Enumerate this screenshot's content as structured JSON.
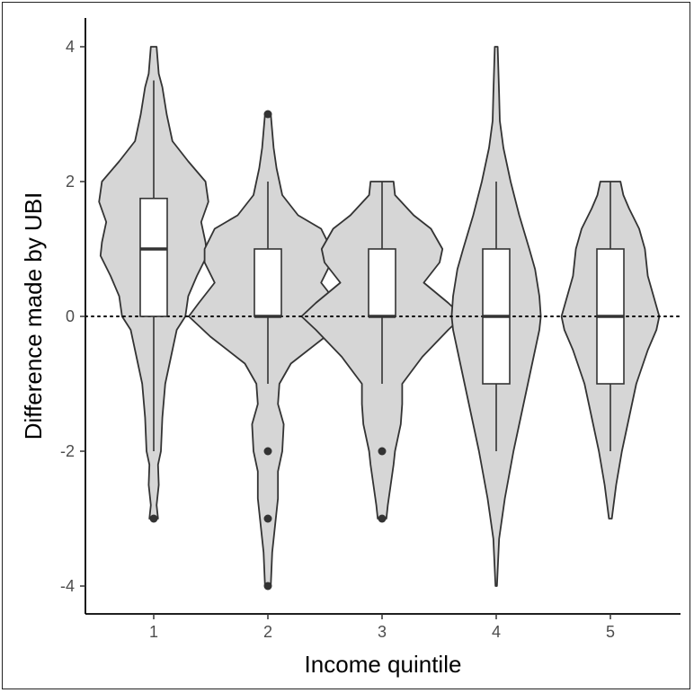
{
  "chart_data": {
    "type": "violin",
    "xlabel": "Income quintile",
    "ylabel": "Difference made by UBI",
    "categories": [
      "1",
      "2",
      "3",
      "4",
      "5"
    ],
    "yticks": [
      "4",
      "2",
      "0",
      "-2",
      "-4"
    ],
    "ytick_values": [
      4,
      2,
      0,
      -2,
      -4
    ],
    "ylim": [
      -4.4,
      4.4
    ],
    "reference_line": {
      "y": 0,
      "style": "dotted"
    },
    "grid": false,
    "colors": {
      "violin_fill": "#d6d6d6",
      "stroke": "#333333",
      "box_fill": "#ffffff",
      "point": "#333333"
    },
    "groups": [
      {
        "category": "1",
        "box": {
          "q1": 0,
          "median": 1,
          "q3": 1.75,
          "whisker_low": -2,
          "whisker_high": 3.5
        },
        "outliers": [
          -3
        ],
        "range": [
          -3,
          4
        ],
        "density": [
          [
            -3,
            0.03
          ],
          [
            -2.8,
            0.02
          ],
          [
            -2.5,
            0.035
          ],
          [
            -2.2,
            0.03
          ],
          [
            -2,
            0.05
          ],
          [
            -1.5,
            0.06
          ],
          [
            -1,
            0.08
          ],
          [
            -0.5,
            0.13
          ],
          [
            -0.2,
            0.16
          ],
          [
            0,
            0.22
          ],
          [
            0.3,
            0.24
          ],
          [
            0.6,
            0.3
          ],
          [
            0.9,
            0.37
          ],
          [
            1.1,
            0.36
          ],
          [
            1.4,
            0.33
          ],
          [
            1.7,
            0.38
          ],
          [
            2,
            0.36
          ],
          [
            2.3,
            0.24
          ],
          [
            2.6,
            0.13
          ],
          [
            3,
            0.09
          ],
          [
            3.4,
            0.06
          ],
          [
            3.6,
            0.035
          ],
          [
            4,
            0.02
          ]
        ]
      },
      {
        "category": "2",
        "box": {
          "q1": 0,
          "median": 0,
          "q3": 1,
          "whisker_low": -1,
          "whisker_high": 2
        },
        "outliers": [
          3,
          -2,
          -3,
          -4
        ],
        "range": [
          -4,
          3
        ],
        "density": [
          [
            -4,
            0.02
          ],
          [
            -3.5,
            0.03
          ],
          [
            -3.1,
            0.05
          ],
          [
            -2.7,
            0.07
          ],
          [
            -2.3,
            0.07
          ],
          [
            -2,
            0.1
          ],
          [
            -1.6,
            0.11
          ],
          [
            -1.3,
            0.07
          ],
          [
            -1,
            0.08
          ],
          [
            -0.7,
            0.16
          ],
          [
            -0.3,
            0.4
          ],
          [
            0,
            0.55
          ],
          [
            0.2,
            0.48
          ],
          [
            0.5,
            0.37
          ],
          [
            0.8,
            0.44
          ],
          [
            1,
            0.44
          ],
          [
            1.3,
            0.37
          ],
          [
            1.5,
            0.21
          ],
          [
            1.8,
            0.1
          ],
          [
            2.2,
            0.06
          ],
          [
            2.5,
            0.04
          ],
          [
            3,
            0.02
          ]
        ]
      },
      {
        "category": "3",
        "box": {
          "q1": 0,
          "median": 0,
          "q3": 1,
          "whisker_low": -1,
          "whisker_high": 2
        },
        "outliers": [
          -2,
          -3
        ],
        "range": [
          -3,
          2
        ],
        "density": [
          [
            -3,
            0.03
          ],
          [
            -2.8,
            0.04
          ],
          [
            -2.5,
            0.06
          ],
          [
            -2.2,
            0.08
          ],
          [
            -2,
            0.09
          ],
          [
            -1.6,
            0.13
          ],
          [
            -1.3,
            0.14
          ],
          [
            -1,
            0.14
          ],
          [
            -0.6,
            0.28
          ],
          [
            -0.2,
            0.46
          ],
          [
            0,
            0.56
          ],
          [
            0.2,
            0.46
          ],
          [
            0.5,
            0.29
          ],
          [
            0.8,
            0.4
          ],
          [
            1,
            0.42
          ],
          [
            1.3,
            0.34
          ],
          [
            1.5,
            0.22
          ],
          [
            1.8,
            0.09
          ],
          [
            2,
            0.08
          ]
        ]
      },
      {
        "category": "4",
        "box": {
          "q1": -1,
          "median": 0,
          "q3": 1,
          "whisker_low": -2,
          "whisker_high": 2
        },
        "outliers": [],
        "range": [
          -4,
          4
        ],
        "density": [
          [
            -4,
            0.005
          ],
          [
            -3.3,
            0.02
          ],
          [
            -2.7,
            0.06
          ],
          [
            -2,
            0.12
          ],
          [
            -1.5,
            0.17
          ],
          [
            -1,
            0.22
          ],
          [
            -0.5,
            0.27
          ],
          [
            -0.2,
            0.3
          ],
          [
            0,
            0.31
          ],
          [
            0.3,
            0.3
          ],
          [
            0.7,
            0.27
          ],
          [
            1,
            0.23
          ],
          [
            1.5,
            0.16
          ],
          [
            2,
            0.1
          ],
          [
            2.5,
            0.05
          ],
          [
            2.9,
            0.025
          ],
          [
            3.3,
            0.02
          ],
          [
            4,
            0.01
          ]
        ]
      },
      {
        "category": "5",
        "box": {
          "q1": -1,
          "median": 0,
          "q3": 1,
          "whisker_low": -2,
          "whisker_high": 2
        },
        "outliers": [],
        "range": [
          -3,
          2
        ],
        "density": [
          [
            -3,
            0.01
          ],
          [
            -2.5,
            0.04
          ],
          [
            -2,
            0.08
          ],
          [
            -1.5,
            0.13
          ],
          [
            -1,
            0.18
          ],
          [
            -0.5,
            0.26
          ],
          [
            -0.2,
            0.32
          ],
          [
            0,
            0.34
          ],
          [
            0.3,
            0.3
          ],
          [
            0.6,
            0.26
          ],
          [
            1,
            0.24
          ],
          [
            1.3,
            0.2
          ],
          [
            1.6,
            0.13
          ],
          [
            1.8,
            0.09
          ],
          [
            2,
            0.07
          ]
        ]
      }
    ]
  }
}
